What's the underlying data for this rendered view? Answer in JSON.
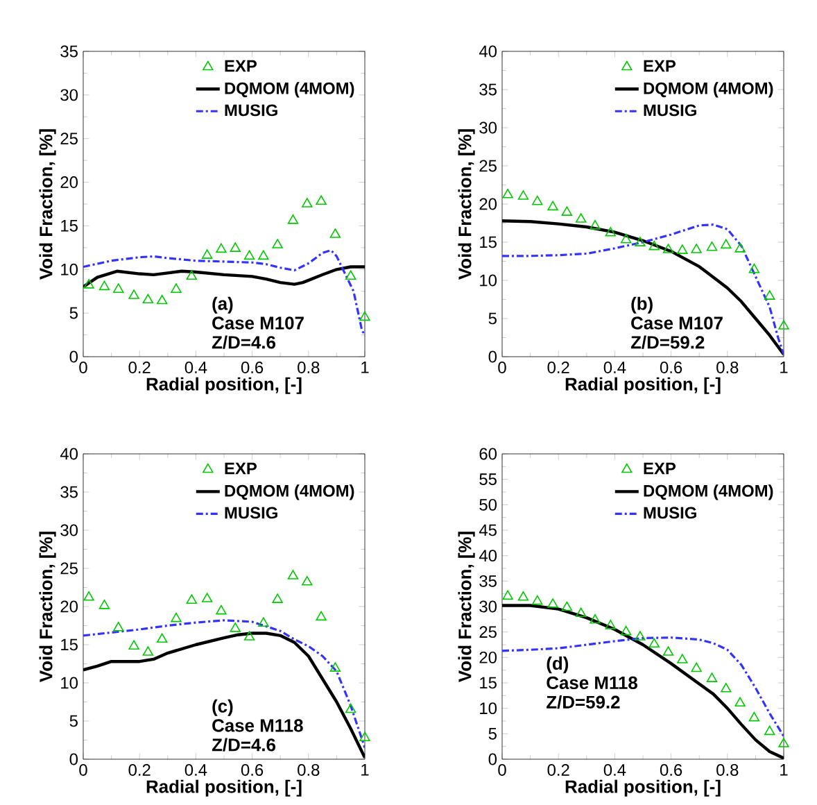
{
  "chart_data": [
    {
      "type": "line",
      "xlabel": "Radial position, [-]",
      "ylabel": "Void Fraction, [%]",
      "xlim": [
        0,
        1
      ],
      "xticks": [
        0,
        0.2,
        0.4,
        0.6,
        0.8,
        1
      ],
      "ylim": [
        0,
        35
      ],
      "yticks": [
        0,
        5,
        10,
        15,
        20,
        25,
        30,
        35
      ],
      "legend": "top right",
      "annotations": [
        "(a)",
        "Case M107",
        "Z/D=4.6"
      ],
      "series": [
        {
          "name": "EXP",
          "type": "scatter",
          "marker": "triangle",
          "color": "#00c800",
          "x": [
            0.02,
            0.075,
            0.125,
            0.18,
            0.23,
            0.28,
            0.33,
            0.385,
            0.44,
            0.49,
            0.54,
            0.59,
            0.64,
            0.69,
            0.745,
            0.795,
            0.845,
            0.895,
            0.95,
            1.0
          ],
          "values": [
            8.2,
            8,
            7.7,
            7,
            6.5,
            6.4,
            7.7,
            9.2,
            11.6,
            12.3,
            12.4,
            11.5,
            11.5,
            12.8,
            15.6,
            17.5,
            17.8,
            14,
            9.2,
            4.5
          ]
        },
        {
          "name": "DQMOM (4MOM)",
          "line_style": "solid",
          "color": "#000000",
          "x": [
            0,
            0.05,
            0.12,
            0.2,
            0.25,
            0.3,
            0.35,
            0.4,
            0.5,
            0.6,
            0.65,
            0.7,
            0.75,
            0.78,
            0.85,
            0.9,
            0.95,
            1.0
          ],
          "values": [
            8.0,
            9.1,
            9.8,
            9.5,
            9.4,
            9.6,
            9.8,
            9.7,
            9.4,
            9.2,
            8.9,
            8.5,
            8.3,
            8.5,
            9.4,
            10.0,
            10.3,
            10.3
          ]
        },
        {
          "name": "MUSIG",
          "line_style": "dashdot",
          "color": "#3333ff",
          "x": [
            0,
            0.1,
            0.2,
            0.25,
            0.3,
            0.4,
            0.5,
            0.6,
            0.65,
            0.7,
            0.75,
            0.8,
            0.85,
            0.88,
            0.9,
            0.93,
            0.96,
            0.99,
            1.0
          ],
          "values": [
            10.3,
            11.0,
            11.4,
            11.5,
            11.3,
            11.0,
            10.9,
            10.8,
            10.6,
            10.2,
            9.9,
            10.7,
            11.9,
            12.2,
            11.5,
            9.5,
            7.5,
            3.0,
            2.5
          ]
        }
      ]
    },
    {
      "type": "line",
      "xlabel": "Radial position, [-]",
      "ylabel": "Void Fraction, [%]",
      "xlim": [
        0,
        1
      ],
      "xticks": [
        0,
        0.2,
        0.4,
        0.6,
        0.8,
        1
      ],
      "ylim": [
        0,
        40
      ],
      "yticks": [
        0,
        5,
        10,
        15,
        20,
        25,
        30,
        35,
        40
      ],
      "legend": "top right",
      "annotations": [
        "(b)",
        "Case M107",
        "Z/D=59.2"
      ],
      "series": [
        {
          "name": "EXP",
          "type": "scatter",
          "marker": "triangle",
          "color": "#00c800",
          "x": [
            0.02,
            0.075,
            0.125,
            0.18,
            0.23,
            0.28,
            0.33,
            0.385,
            0.44,
            0.49,
            0.54,
            0.59,
            0.64,
            0.69,
            0.745,
            0.795,
            0.845,
            0.895,
            0.95,
            1.0
          ],
          "values": [
            21.2,
            21,
            20.3,
            19.6,
            18.9,
            18,
            17.1,
            16.2,
            15.3,
            14.9,
            14.4,
            14,
            13.9,
            14,
            14.3,
            14.6,
            14.1,
            11.4,
            7.9,
            4.0
          ]
        },
        {
          "name": "DQMOM (4MOM)",
          "line_style": "solid",
          "color": "#000000",
          "x": [
            0,
            0.1,
            0.2,
            0.3,
            0.4,
            0.5,
            0.6,
            0.7,
            0.8,
            0.85,
            0.9,
            0.95,
            1.0
          ],
          "values": [
            17.8,
            17.7,
            17.4,
            17.0,
            16.3,
            15.2,
            13.8,
            11.8,
            9.0,
            7.2,
            5.0,
            2.8,
            0.3
          ]
        },
        {
          "name": "MUSIG",
          "line_style": "dashdot",
          "color": "#3333ff",
          "x": [
            0,
            0.1,
            0.2,
            0.3,
            0.4,
            0.5,
            0.6,
            0.65,
            0.7,
            0.75,
            0.8,
            0.85,
            0.9,
            0.95,
            0.98,
            1.0
          ],
          "values": [
            13.2,
            13.2,
            13.3,
            13.5,
            14.2,
            15.0,
            16.0,
            16.6,
            17.2,
            17.3,
            16.7,
            14.5,
            10.5,
            6.5,
            2.5,
            0.3
          ]
        }
      ]
    },
    {
      "type": "line",
      "xlabel": "Radial position, [-]",
      "ylabel": "Void Fraction, [%]",
      "xlim": [
        0,
        1
      ],
      "xticks": [
        0,
        0.2,
        0.4,
        0.6,
        0.8,
        1
      ],
      "ylim": [
        0,
        40
      ],
      "yticks": [
        0,
        5,
        10,
        15,
        20,
        25,
        30,
        35,
        40
      ],
      "legend": "top right",
      "annotations": [
        "(c)",
        "Case M118",
        "Z/D=4.6"
      ],
      "series": [
        {
          "name": "EXP",
          "type": "scatter",
          "marker": "triangle",
          "color": "#00c800",
          "x": [
            0.02,
            0.075,
            0.125,
            0.18,
            0.23,
            0.28,
            0.33,
            0.385,
            0.44,
            0.49,
            0.54,
            0.59,
            0.64,
            0.69,
            0.745,
            0.795,
            0.845,
            0.895,
            0.95,
            1.0
          ],
          "values": [
            21.2,
            20.1,
            17.2,
            14.8,
            14,
            15.7,
            18.4,
            20.8,
            21,
            19.4,
            17.1,
            16,
            17.8,
            20.9,
            24,
            23.2,
            18.6,
            11.9,
            6.5,
            2.8
          ]
        },
        {
          "name": "DQMOM (4MOM)",
          "line_style": "solid",
          "color": "#000000",
          "x": [
            0,
            0.05,
            0.1,
            0.2,
            0.25,
            0.3,
            0.4,
            0.5,
            0.55,
            0.6,
            0.65,
            0.7,
            0.75,
            0.8,
            0.85,
            0.9,
            0.95,
            1.0
          ],
          "values": [
            11.7,
            12.2,
            12.8,
            12.8,
            13.1,
            13.9,
            15.0,
            15.9,
            16.3,
            16.5,
            16.5,
            16.2,
            15.3,
            13.5,
            10.5,
            7.5,
            4.0,
            0.2
          ]
        },
        {
          "name": "MUSIG",
          "line_style": "dashdot",
          "color": "#3333ff",
          "x": [
            0,
            0.1,
            0.2,
            0.3,
            0.4,
            0.5,
            0.6,
            0.7,
            0.75,
            0.8,
            0.85,
            0.9,
            0.95,
            1.0
          ],
          "values": [
            16.2,
            16.6,
            17.0,
            17.5,
            17.9,
            18.2,
            18.0,
            16.8,
            15.7,
            14.8,
            13.5,
            11.5,
            7.0,
            1.5
          ]
        }
      ]
    },
    {
      "type": "line",
      "xlabel": "Radial position, [-]",
      "ylabel": "Void Fraction, [%]",
      "xlim": [
        0,
        1
      ],
      "xticks": [
        0,
        0.2,
        0.4,
        0.6,
        0.8,
        1
      ],
      "ylim": [
        0,
        60
      ],
      "yticks": [
        0,
        5,
        10,
        15,
        20,
        25,
        30,
        35,
        40,
        45,
        50,
        55,
        60
      ],
      "legend": "top right",
      "annotations": [
        "(d)",
        "Case M118",
        "Z/D=59.2"
      ],
      "series": [
        {
          "name": "EXP",
          "type": "scatter",
          "marker": "triangle",
          "color": "#00c800",
          "x": [
            0.02,
            0.075,
            0.125,
            0.18,
            0.23,
            0.28,
            0.33,
            0.385,
            0.44,
            0.49,
            0.54,
            0.59,
            0.64,
            0.69,
            0.745,
            0.795,
            0.845,
            0.895,
            0.95,
            1.0
          ],
          "values": [
            32,
            31.8,
            31,
            30.4,
            29.8,
            28.6,
            27.3,
            26.2,
            25,
            24,
            22.6,
            21,
            19.5,
            17.8,
            15.8,
            13.8,
            11,
            8.1,
            5.4,
            3.0
          ]
        },
        {
          "name": "DQMOM (4MOM)",
          "line_style": "solid",
          "color": "#000000",
          "x": [
            0,
            0.1,
            0.2,
            0.3,
            0.4,
            0.5,
            0.6,
            0.7,
            0.75,
            0.8,
            0.85,
            0.9,
            0.95,
            1.0
          ],
          "values": [
            30.2,
            30.2,
            29.5,
            27.8,
            25.5,
            22.5,
            18.8,
            14.8,
            12.8,
            10.0,
            6.8,
            3.8,
            1.5,
            0.2
          ]
        },
        {
          "name": "MUSIG",
          "line_style": "dashdot",
          "color": "#3333ff",
          "x": [
            0,
            0.1,
            0.2,
            0.3,
            0.4,
            0.5,
            0.6,
            0.7,
            0.75,
            0.8,
            0.85,
            0.9,
            0.95,
            1.0
          ],
          "values": [
            21.3,
            21.5,
            21.8,
            22.5,
            23.2,
            23.8,
            23.9,
            23.5,
            22.8,
            21.5,
            18.5,
            14.0,
            9.0,
            4.5
          ]
        }
      ]
    }
  ]
}
